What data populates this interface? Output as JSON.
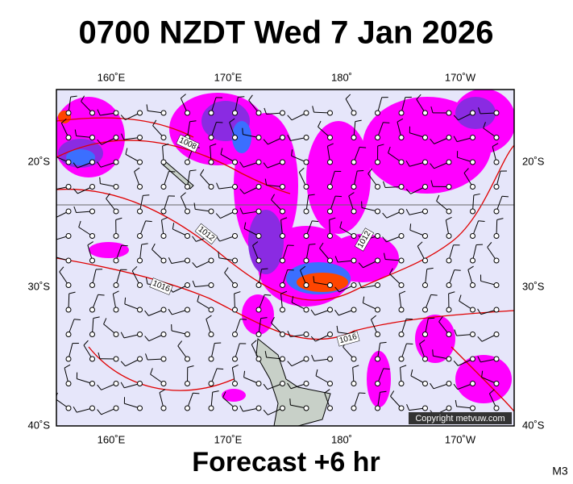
{
  "title": "0700 NZDT Wed 7 Jan 2026",
  "map": {
    "top_labels": [
      "160˚E",
      "170˚E",
      "180˚",
      "170˚W"
    ],
    "bottom_labels": [
      "160˚E",
      "170˚E",
      "180˚",
      "170˚W"
    ],
    "left_labels": [
      "20˚S",
      "30˚S",
      "40˚S"
    ],
    "right_labels": [
      "20˚S",
      "30˚S",
      "40˚S"
    ],
    "isobar_labels": [
      "1008",
      "1012",
      "1016",
      "1016",
      "1012"
    ],
    "copyright": "Copyright metvuw.com"
  },
  "footer": {
    "forecast": "Forecast +6 hr",
    "code": "M3"
  }
}
